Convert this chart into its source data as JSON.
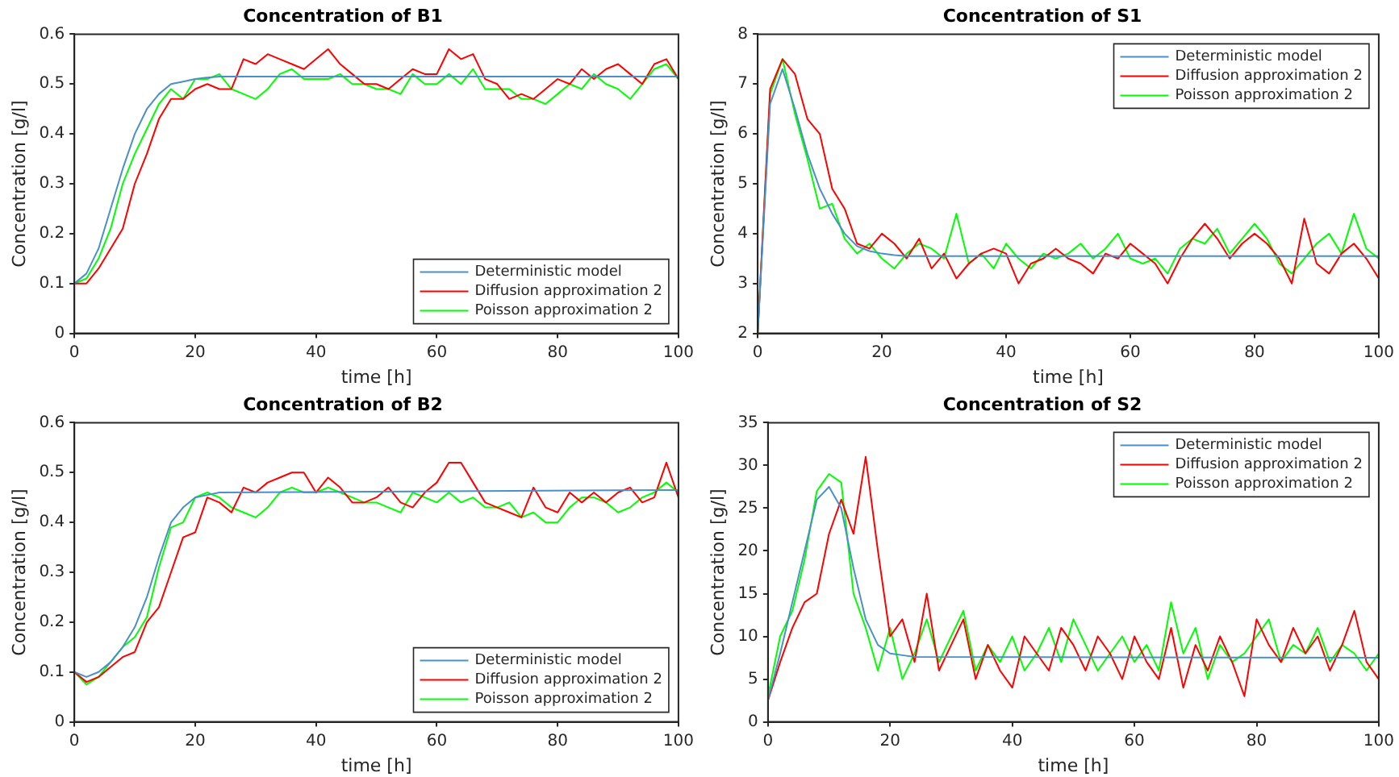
{
  "chart_data": [
    {
      "type": "line",
      "title": "Concentration of B1",
      "xlabel": "time [h]",
      "ylabel": "Concentration [g/l]",
      "xlim": [
        0,
        100
      ],
      "xticks": [
        0,
        20,
        40,
        60,
        80,
        100
      ],
      "ylim": [
        0,
        0.6
      ],
      "yticks": [
        0,
        0.1,
        0.2,
        0.3,
        0.4,
        0.5,
        0.6
      ],
      "legend": "bottom right",
      "grid": false,
      "x": [
        0,
        2,
        4,
        6,
        8,
        10,
        12,
        14,
        16,
        18,
        20,
        22,
        24,
        26,
        28,
        30,
        32,
        34,
        36,
        38,
        40,
        42,
        44,
        46,
        48,
        50,
        52,
        54,
        56,
        58,
        60,
        62,
        64,
        66,
        68,
        70,
        72,
        74,
        76,
        78,
        80,
        82,
        84,
        86,
        88,
        90,
        92,
        94,
        96,
        98,
        100
      ],
      "series": [
        {
          "name": "Deterministic model",
          "color": "#4a90c8",
          "x": [
            0,
            2,
            4,
            6,
            8,
            10,
            12,
            14,
            16,
            18,
            20,
            22,
            24,
            100
          ],
          "values": [
            0.1,
            0.12,
            0.17,
            0.25,
            0.33,
            0.4,
            0.45,
            0.48,
            0.5,
            0.505,
            0.51,
            0.513,
            0.515,
            0.515
          ]
        },
        {
          "name": "Diffusion approximation 2",
          "color": "#ff0000",
          "values": [
            0.1,
            0.1,
            0.13,
            0.17,
            0.21,
            0.3,
            0.36,
            0.43,
            0.47,
            0.47,
            0.49,
            0.5,
            0.49,
            0.49,
            0.55,
            0.54,
            0.56,
            0.55,
            0.54,
            0.53,
            0.55,
            0.57,
            0.54,
            0.52,
            0.5,
            0.5,
            0.49,
            0.51,
            0.53,
            0.52,
            0.52,
            0.57,
            0.55,
            0.56,
            0.51,
            0.5,
            0.47,
            0.48,
            0.47,
            0.49,
            0.51,
            0.5,
            0.53,
            0.51,
            0.53,
            0.54,
            0.52,
            0.5,
            0.54,
            0.55,
            0.51
          ]
        },
        {
          "name": "Poisson approximation 2",
          "color": "#00ff00",
          "values": [
            0.1,
            0.11,
            0.15,
            0.21,
            0.3,
            0.36,
            0.41,
            0.46,
            0.49,
            0.47,
            0.51,
            0.51,
            0.52,
            0.49,
            0.48,
            0.47,
            0.49,
            0.52,
            0.53,
            0.51,
            0.51,
            0.51,
            0.52,
            0.5,
            0.5,
            0.49,
            0.49,
            0.48,
            0.52,
            0.5,
            0.5,
            0.52,
            0.5,
            0.53,
            0.49,
            0.49,
            0.49,
            0.47,
            0.47,
            0.46,
            0.48,
            0.5,
            0.49,
            0.52,
            0.5,
            0.49,
            0.47,
            0.5,
            0.53,
            0.54,
            0.51
          ]
        }
      ]
    },
    {
      "type": "line",
      "title": "Concentration of S1",
      "xlabel": "time [h]",
      "ylabel": "Concentration [g/l]",
      "xlim": [
        0,
        100
      ],
      "xticks": [
        0,
        20,
        40,
        60,
        80,
        100
      ],
      "ylim": [
        2,
        8
      ],
      "yticks": [
        2,
        3,
        4,
        5,
        6,
        7,
        8
      ],
      "legend": "top right",
      "grid": false,
      "x": [
        0,
        2,
        4,
        6,
        8,
        10,
        12,
        14,
        16,
        18,
        20,
        22,
        24,
        26,
        28,
        30,
        32,
        34,
        36,
        38,
        40,
        42,
        44,
        46,
        48,
        50,
        52,
        54,
        56,
        58,
        60,
        62,
        64,
        66,
        68,
        70,
        72,
        74,
        76,
        78,
        80,
        82,
        84,
        86,
        88,
        90,
        92,
        94,
        96,
        98,
        100
      ],
      "series": [
        {
          "name": "Deterministic model",
          "color": "#4a90c8",
          "x": [
            0,
            2,
            4,
            6,
            8,
            10,
            12,
            14,
            16,
            18,
            20,
            22,
            24,
            100
          ],
          "values": [
            2,
            6.6,
            7.3,
            6.5,
            5.6,
            4.9,
            4.4,
            4,
            3.75,
            3.65,
            3.6,
            3.57,
            3.55,
            3.55
          ]
        },
        {
          "name": "Diffusion approximation 2",
          "color": "#ff0000",
          "values": [
            2,
            6.9,
            7.5,
            7.2,
            6.3,
            6,
            4.9,
            4.5,
            3.8,
            3.7,
            4,
            3.8,
            3.5,
            3.9,
            3.3,
            3.6,
            3.1,
            3.4,
            3.6,
            3.7,
            3.6,
            3,
            3.4,
            3.5,
            3.7,
            3.5,
            3.4,
            3.2,
            3.6,
            3.5,
            3.8,
            3.6,
            3.4,
            3,
            3.5,
            3.9,
            4.2,
            3.9,
            3.5,
            3.8,
            4,
            3.8,
            3.5,
            3,
            4.3,
            3.4,
            3.2,
            3.6,
            3.8,
            3.5,
            3.1
          ]
        },
        {
          "name": "Poisson approximation 2",
          "color": "#00ff00",
          "values": [
            2,
            6.8,
            7.5,
            6.4,
            5.5,
            4.5,
            4.6,
            3.9,
            3.6,
            3.8,
            3.5,
            3.3,
            3.6,
            3.8,
            3.7,
            3.5,
            4.4,
            3.4,
            3.6,
            3.3,
            3.8,
            3.5,
            3.3,
            3.6,
            3.5,
            3.6,
            3.8,
            3.5,
            3.7,
            4,
            3.5,
            3.4,
            3.5,
            3.2,
            3.7,
            3.9,
            3.8,
            4.1,
            3.6,
            3.9,
            4.2,
            3.9,
            3.4,
            3.2,
            3.5,
            3.8,
            4,
            3.6,
            4.4,
            3.7,
            3.5
          ]
        }
      ]
    },
    {
      "type": "line",
      "title": "Concentration of B2",
      "xlabel": "time [h]",
      "ylabel": "Concentration [g/l]",
      "xlim": [
        0,
        100
      ],
      "xticks": [
        0,
        20,
        40,
        60,
        80,
        100
      ],
      "ylim": [
        0,
        0.6
      ],
      "yticks": [
        0,
        0.1,
        0.2,
        0.3,
        0.4,
        0.5,
        0.6
      ],
      "legend": "bottom right",
      "grid": false,
      "x": [
        0,
        2,
        4,
        6,
        8,
        10,
        12,
        14,
        16,
        18,
        20,
        22,
        24,
        26,
        28,
        30,
        32,
        34,
        36,
        38,
        40,
        42,
        44,
        46,
        48,
        50,
        52,
        54,
        56,
        58,
        60,
        62,
        64,
        66,
        68,
        70,
        72,
        74,
        76,
        78,
        80,
        82,
        84,
        86,
        88,
        90,
        92,
        94,
        96,
        98,
        100
      ],
      "series": [
        {
          "name": "Deterministic model",
          "color": "#4a90c8",
          "x": [
            0,
            2,
            4,
            6,
            8,
            10,
            12,
            14,
            16,
            18,
            20,
            22,
            24,
            100
          ],
          "values": [
            0.1,
            0.09,
            0.1,
            0.12,
            0.15,
            0.19,
            0.25,
            0.33,
            0.4,
            0.43,
            0.45,
            0.455,
            0.46,
            0.465
          ]
        },
        {
          "name": "Diffusion approximation 2",
          "color": "#ff0000",
          "values": [
            0.1,
            0.08,
            0.09,
            0.11,
            0.13,
            0.14,
            0.2,
            0.23,
            0.3,
            0.37,
            0.38,
            0.45,
            0.44,
            0.42,
            0.47,
            0.46,
            0.48,
            0.49,
            0.5,
            0.5,
            0.46,
            0.49,
            0.47,
            0.44,
            0.44,
            0.45,
            0.47,
            0.44,
            0.43,
            0.46,
            0.48,
            0.52,
            0.52,
            0.48,
            0.44,
            0.43,
            0.42,
            0.41,
            0.47,
            0.43,
            0.42,
            0.46,
            0.44,
            0.46,
            0.44,
            0.46,
            0.47,
            0.44,
            0.45,
            0.52,
            0.45
          ]
        },
        {
          "name": "Poisson approximation 2",
          "color": "#00ff00",
          "values": [
            0.1,
            0.075,
            0.09,
            0.12,
            0.15,
            0.17,
            0.21,
            0.31,
            0.39,
            0.4,
            0.45,
            0.46,
            0.45,
            0.43,
            0.42,
            0.41,
            0.43,
            0.46,
            0.47,
            0.46,
            0.46,
            0.47,
            0.46,
            0.45,
            0.44,
            0.44,
            0.43,
            0.42,
            0.46,
            0.45,
            0.44,
            0.46,
            0.44,
            0.45,
            0.43,
            0.43,
            0.44,
            0.41,
            0.42,
            0.4,
            0.4,
            0.43,
            0.45,
            0.45,
            0.44,
            0.42,
            0.43,
            0.45,
            0.46,
            0.48,
            0.46
          ]
        }
      ]
    },
    {
      "type": "line",
      "title": "Concentration of S2",
      "xlabel": "time [h]",
      "ylabel": "Concentration [g/l]",
      "xlim": [
        0,
        100
      ],
      "xticks": [
        0,
        20,
        40,
        60,
        80,
        100
      ],
      "ylim": [
        0,
        35
      ],
      "yticks": [
        0,
        5,
        10,
        15,
        20,
        25,
        30,
        35
      ],
      "legend": "top right",
      "grid": false,
      "x": [
        0,
        2,
        4,
        6,
        8,
        10,
        12,
        14,
        16,
        18,
        20,
        22,
        24,
        26,
        28,
        30,
        32,
        34,
        36,
        38,
        40,
        42,
        44,
        46,
        48,
        50,
        52,
        54,
        56,
        58,
        60,
        62,
        64,
        66,
        68,
        70,
        72,
        74,
        76,
        78,
        80,
        82,
        84,
        86,
        88,
        90,
        92,
        94,
        96,
        98,
        100
      ],
      "series": [
        {
          "name": "Deterministic model",
          "color": "#4a90c8",
          "x": [
            0,
            2,
            4,
            6,
            8,
            10,
            12,
            14,
            16,
            18,
            20,
            22,
            24,
            100
          ],
          "values": [
            2.5,
            8,
            14,
            20,
            26,
            27.5,
            25,
            18,
            12,
            9,
            8,
            7.8,
            7.6,
            7.5
          ]
        },
        {
          "name": "Diffusion approximation 2",
          "color": "#ff0000",
          "values": [
            2.5,
            7,
            11,
            14,
            15,
            22,
            26,
            22,
            31,
            20,
            10,
            12,
            7,
            15,
            6,
            9,
            12,
            5,
            9,
            6,
            4,
            10,
            8,
            6,
            11,
            9,
            6,
            10,
            8,
            5,
            10,
            7,
            5,
            11,
            4,
            9,
            6,
            10,
            7,
            3,
            12,
            9,
            7,
            11,
            8,
            10,
            6,
            9,
            13,
            7,
            5
          ]
        },
        {
          "name": "Poisson approximation 2",
          "color": "#00ff00",
          "values": [
            3,
            10,
            13,
            19,
            27,
            29,
            28,
            15,
            11,
            6,
            11,
            5,
            8,
            12,
            7,
            10,
            13,
            6,
            9,
            7,
            10,
            6,
            8,
            11,
            7,
            12,
            9,
            6,
            8,
            10,
            7,
            9,
            6,
            14,
            8,
            11,
            5,
            9,
            7,
            8,
            10,
            12,
            7,
            9,
            8,
            11,
            7,
            9,
            8,
            6,
            8
          ]
        }
      ]
    }
  ]
}
